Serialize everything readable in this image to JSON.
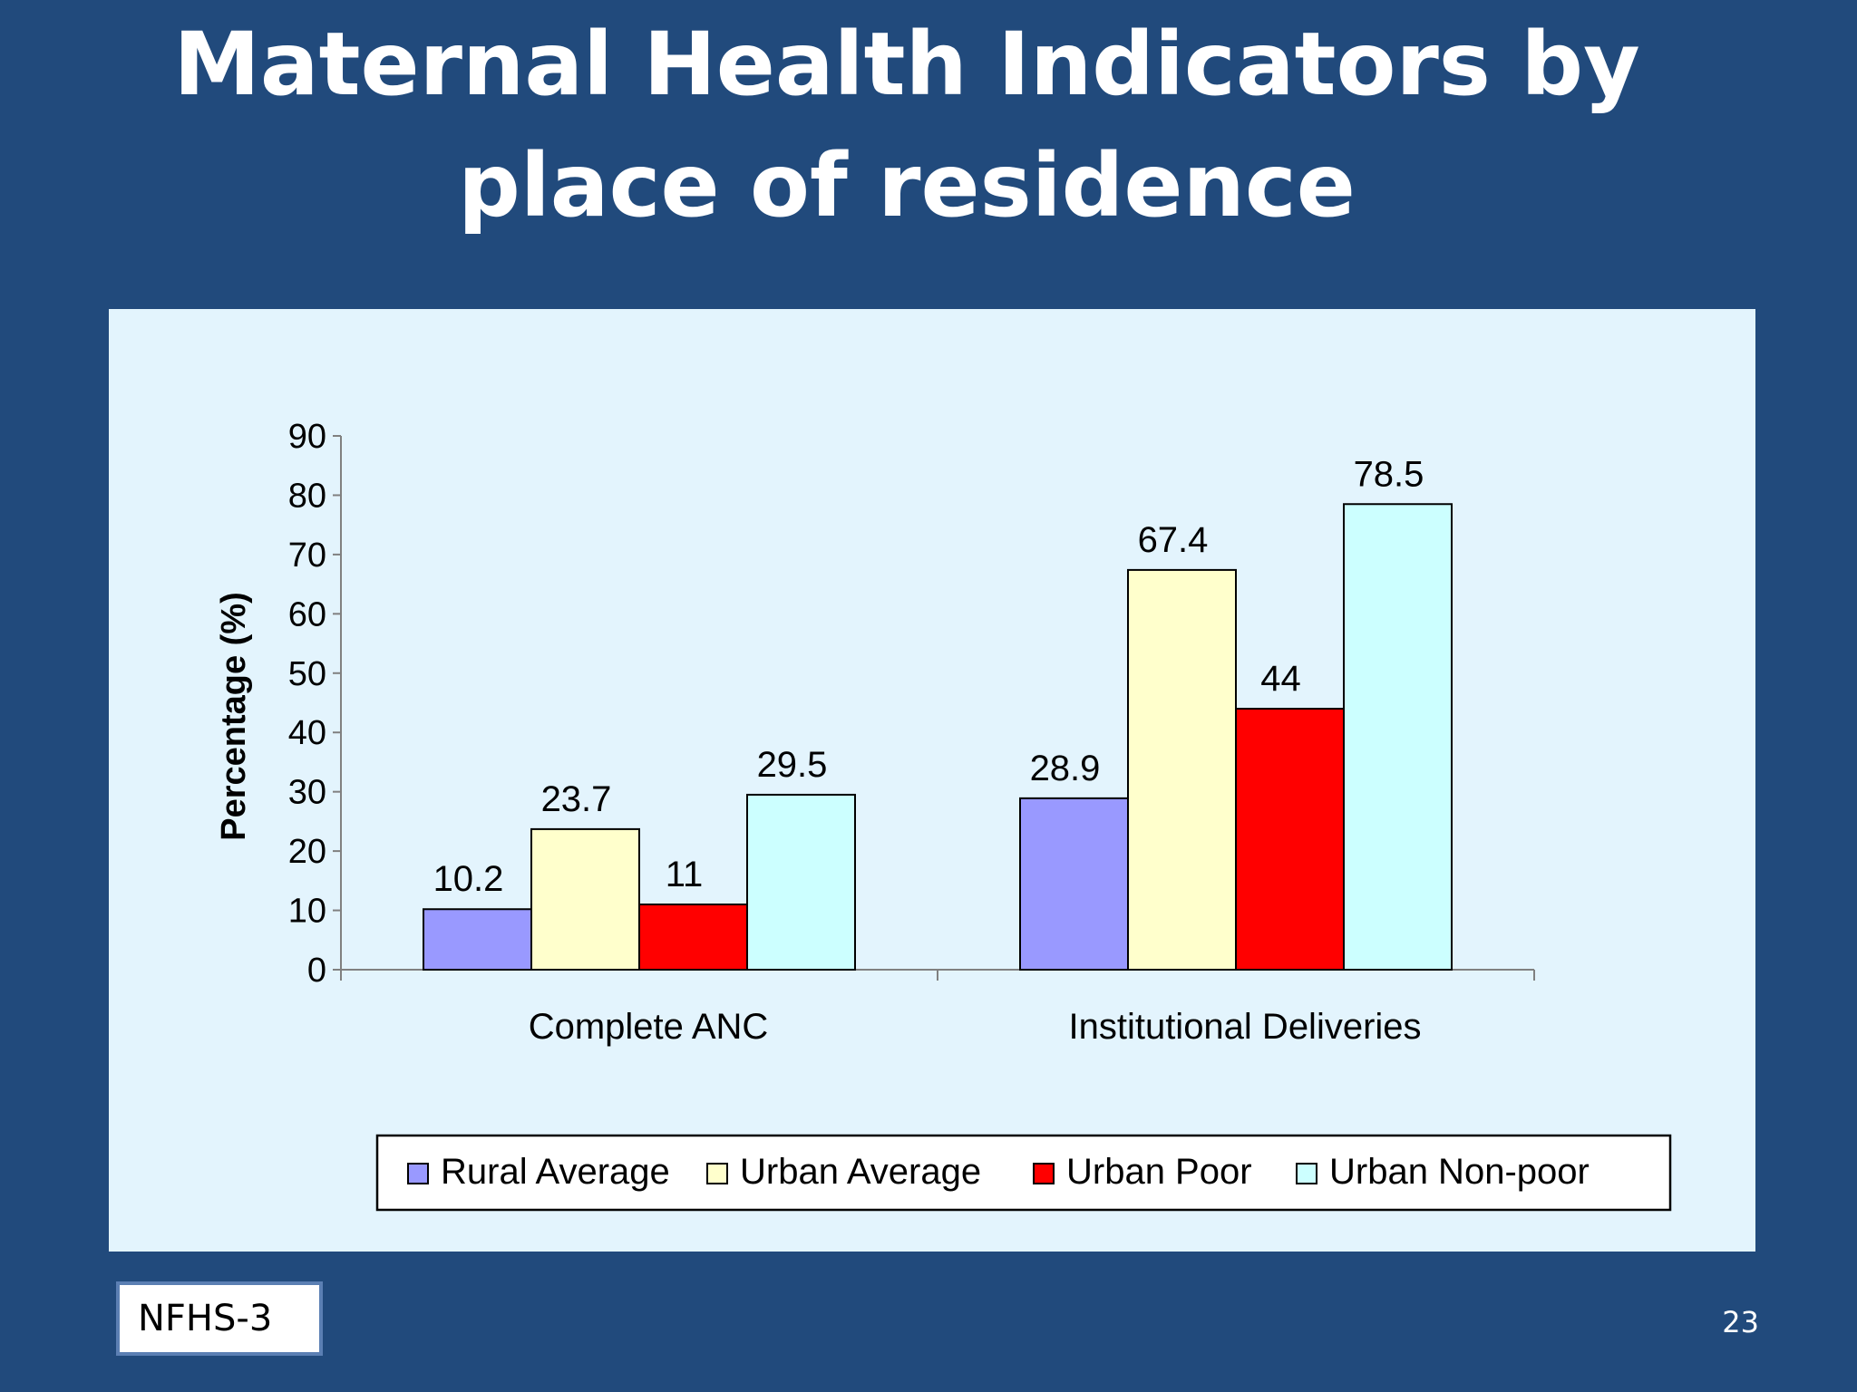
{
  "slide": {
    "title_line1": "Maternal Health Indicators by",
    "title_line2": "place of residence",
    "source_label": "NFHS-3",
    "page_number": "23"
  },
  "chart_data": {
    "type": "bar",
    "title": "",
    "xlabel": "",
    "ylabel": "Percentage (%)",
    "ylim": [
      0,
      90
    ],
    "yticks": [
      0,
      10,
      20,
      30,
      40,
      50,
      60,
      70,
      80,
      90
    ],
    "categories": [
      "Complete ANC",
      "Institutional  Deliveries"
    ],
    "series": [
      {
        "name": "Rural Average",
        "color": "#9999ff",
        "values": [
          10.2,
          28.9
        ]
      },
      {
        "name": "Urban Average",
        "color": "#ffffcc",
        "values": [
          23.7,
          67.4
        ]
      },
      {
        "name": "Urban Poor",
        "color": "#ff0000",
        "values": [
          11,
          44
        ]
      },
      {
        "name": "Urban Non-poor",
        "color": "#ccffff",
        "values": [
          29.5,
          78.5
        ]
      }
    ],
    "data_labels": true,
    "legend_position": "bottom",
    "grid": false
  }
}
